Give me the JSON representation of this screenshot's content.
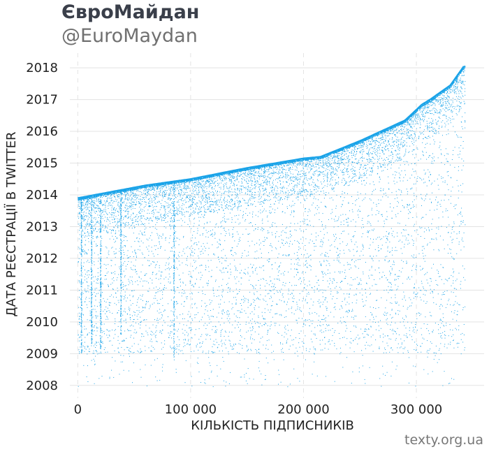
{
  "header": {
    "title": "ЄвроМайдан",
    "subtitle": "@EuroMaydan"
  },
  "footer": {
    "source": "texty.org.ua"
  },
  "colors": {
    "points": "#1aa3e8",
    "grid": "#e3e3e3",
    "background": "#ffffff"
  },
  "chart_data": {
    "type": "scatter",
    "xlabel": "КІЛЬКІСТЬ ПІДПИСНИКІВ",
    "ylabel": "ДАТА РЕЄСТРАЦІЇ В TWITTER",
    "xlim": [
      -7000,
      360000
    ],
    "ylim": [
      2007.6,
      2018.2
    ],
    "x_ticks": [
      0,
      100000,
      200000,
      300000
    ],
    "x_tick_labels": [
      "0",
      "100 000",
      "200 000",
      "300 000"
    ],
    "y_ticks": [
      2008,
      2009,
      2010,
      2011,
      2012,
      2013,
      2014,
      2015,
      2016,
      2017,
      2018
    ],
    "y_tick_labels": [
      "2008",
      "2009",
      "2010",
      "2011",
      "2012",
      "2013",
      "2014",
      "2015",
      "2016",
      "2017",
      "2018"
    ],
    "grid": {
      "horizontal": "solid",
      "vertical": "dashed"
    },
    "series": [
      {
        "x": [
          0,
          30000,
          60000,
          100000,
          150000,
          200000,
          215000,
          250000,
          290000,
          305000,
          312000,
          330000,
          343000
        ],
        "y": [
          2013.9,
          2014.1,
          2014.3,
          2014.5,
          2014.85,
          2015.15,
          2015.2,
          2015.7,
          2016.35,
          2016.85,
          2017.0,
          2017.45,
          2018.1
        ]
      }
    ]
  }
}
